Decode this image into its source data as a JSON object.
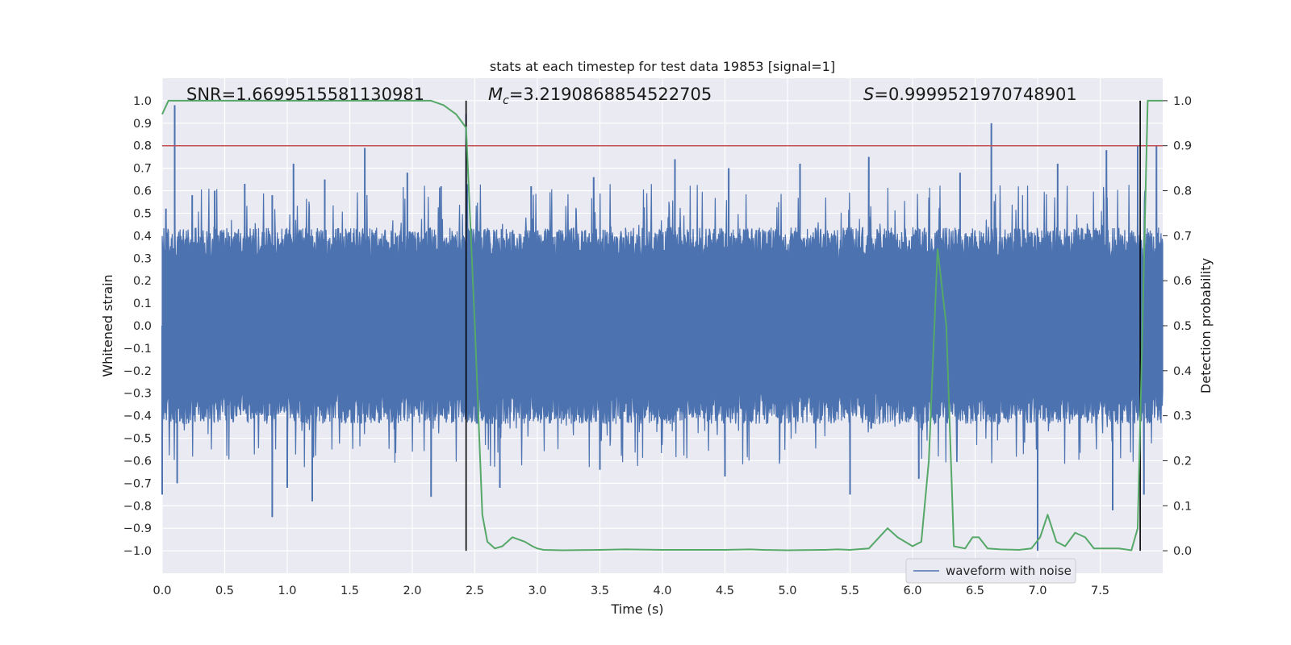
{
  "chart_data": {
    "type": "line",
    "title": "stats at each timestep for test data 19853 [signal=1]",
    "xlabel": "Time (s)",
    "ylabel": "Whitened strain",
    "y2label": "Detection probability",
    "xlim": [
      0.0,
      8.0
    ],
    "ylim": [
      -1.1,
      1.1
    ],
    "y2lim": [
      -0.05,
      1.05
    ],
    "x_ticks": [
      "0.0",
      "0.5",
      "1.0",
      "1.5",
      "2.0",
      "2.5",
      "3.0",
      "3.5",
      "4.0",
      "4.5",
      "5.0",
      "5.5",
      "6.0",
      "6.5",
      "7.0",
      "7.5"
    ],
    "y_ticks": [
      "1.0",
      "0.9",
      "0.8",
      "0.7",
      "0.6",
      "0.5",
      "0.4",
      "0.3",
      "0.2",
      "0.1",
      "0.0",
      "-0.1",
      "-0.2",
      "-0.3",
      "-0.4",
      "-0.5",
      "-0.6",
      "-0.7",
      "-0.8",
      "-0.9",
      "-1.0"
    ],
    "y2_ticks": [
      "1.0",
      "0.9",
      "0.8",
      "0.7",
      "0.6",
      "0.5",
      "0.4",
      "0.3",
      "0.2",
      "0.1",
      "0.0"
    ],
    "annotations": {
      "snr": "SNR=1.6699515581130981",
      "mc_symbol": "M",
      "mc_sub": "c",
      "mc_value": "=3.2190868854522705",
      "s_symbol": "S",
      "s_value": "=0.9999521970748901"
    },
    "threshold_y2": 0.9,
    "vertical_lines_x": [
      2.43,
      7.82
    ],
    "waveform": {
      "name": "waveform with noise",
      "color": "#4c72b0",
      "typical_envelope": 0.38,
      "peaks": [
        {
          "x": 0.03,
          "y": 0.52
        },
        {
          "x": 0.1,
          "y": 0.98
        },
        {
          "x": 0.24,
          "y": 0.58
        },
        {
          "x": 0.42,
          "y": 0.6
        },
        {
          "x": 0.66,
          "y": 0.63
        },
        {
          "x": 0.88,
          "y": 0.58
        },
        {
          "x": 1.05,
          "y": 0.72
        },
        {
          "x": 1.3,
          "y": 0.65
        },
        {
          "x": 1.62,
          "y": 0.79
        },
        {
          "x": 1.96,
          "y": 0.68
        },
        {
          "x": 2.23,
          "y": 0.62
        },
        {
          "x": 2.43,
          "y": 0.94
        },
        {
          "x": 2.95,
          "y": 0.62
        },
        {
          "x": 3.45,
          "y": 0.66
        },
        {
          "x": 4.1,
          "y": 0.74
        },
        {
          "x": 4.53,
          "y": 0.7
        },
        {
          "x": 5.1,
          "y": 0.72
        },
        {
          "x": 5.65,
          "y": 0.75
        },
        {
          "x": 6.38,
          "y": 0.68
        },
        {
          "x": 6.63,
          "y": 0.9
        },
        {
          "x": 7.16,
          "y": 0.72
        },
        {
          "x": 7.55,
          "y": 0.78
        },
        {
          "x": 7.8,
          "y": 0.8
        },
        {
          "x": 7.95,
          "y": 0.8
        }
      ],
      "troughs": [
        {
          "x": 0.0,
          "y": -0.75
        },
        {
          "x": 0.12,
          "y": -0.7
        },
        {
          "x": 0.88,
          "y": -0.85
        },
        {
          "x": 1.0,
          "y": -0.72
        },
        {
          "x": 1.2,
          "y": -0.78
        },
        {
          "x": 2.15,
          "y": -0.76
        },
        {
          "x": 2.7,
          "y": -0.72
        },
        {
          "x": 3.5,
          "y": -0.64
        },
        {
          "x": 4.5,
          "y": -0.67
        },
        {
          "x": 5.5,
          "y": -0.75
        },
        {
          "x": 6.05,
          "y": -0.68
        },
        {
          "x": 7.0,
          "y": -1.0
        },
        {
          "x": 7.6,
          "y": -0.82
        },
        {
          "x": 7.85,
          "y": -0.75
        }
      ]
    },
    "probability": {
      "name": "detection probability",
      "color": "#55a868",
      "x": [
        0.0,
        0.05,
        0.1,
        0.5,
        1.0,
        1.5,
        2.0,
        2.15,
        2.25,
        2.35,
        2.43,
        2.5,
        2.56,
        2.6,
        2.66,
        2.72,
        2.8,
        2.9,
        2.96,
        3.0,
        3.05,
        3.2,
        3.5,
        3.7,
        4.0,
        4.5,
        4.7,
        4.8,
        5.0,
        5.3,
        5.4,
        5.5,
        5.65,
        5.8,
        5.88,
        6.0,
        6.07,
        6.13,
        6.2,
        6.27,
        6.33,
        6.42,
        6.48,
        6.53,
        6.6,
        6.7,
        6.85,
        6.95,
        7.02,
        7.08,
        7.15,
        7.22,
        7.3,
        7.38,
        7.45,
        7.55,
        7.65,
        7.75,
        7.8,
        7.83,
        7.88,
        7.92,
        8.0
      ],
      "y": [
        0.97,
        1.0,
        1.0,
        1.0,
        1.0,
        1.0,
        1.0,
        1.0,
        0.99,
        0.97,
        0.94,
        0.5,
        0.08,
        0.02,
        0.005,
        0.01,
        0.03,
        0.02,
        0.01,
        0.005,
        0.002,
        0.001,
        0.002,
        0.003,
        0.002,
        0.002,
        0.003,
        0.002,
        0.001,
        0.002,
        0.003,
        0.002,
        0.005,
        0.05,
        0.03,
        0.01,
        0.02,
        0.2,
        0.67,
        0.5,
        0.01,
        0.005,
        0.03,
        0.03,
        0.005,
        0.003,
        0.002,
        0.005,
        0.03,
        0.08,
        0.02,
        0.01,
        0.04,
        0.03,
        0.005,
        0.005,
        0.005,
        0.001,
        0.05,
        0.4,
        1.0,
        1.0,
        1.0
      ]
    },
    "grid": true,
    "legend": "lower-right"
  }
}
